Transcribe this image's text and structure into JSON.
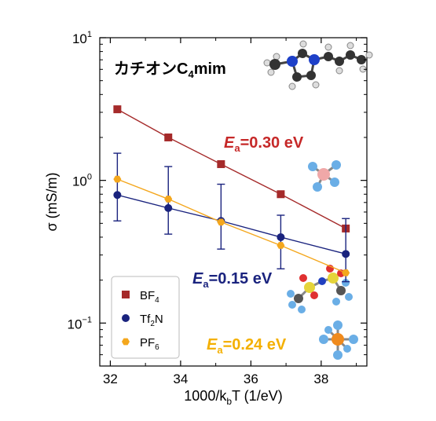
{
  "chart_data": {
    "type": "scatter",
    "title": "カチオンC4mim",
    "title_main": "カチオンC",
    "title_sub": "4",
    "title_tail": "mim",
    "xlabel": "1000/kbT (1/eV)",
    "xlabel_main": "1000/k",
    "xlabel_sub": "b",
    "xlabel_tail": "T (1/eV)",
    "ylabel": "σ (mS/m)",
    "xlim": [
      31.7,
      39.3
    ],
    "ylim": [
      0.05,
      10
    ],
    "yscale": "log",
    "xticks": [
      32,
      34,
      36,
      38
    ],
    "xtick_labels": [
      "32",
      "34",
      "36",
      "38"
    ],
    "yticks": [
      {
        "value": 10,
        "base": "10",
        "exp": "1"
      },
      {
        "value": 1,
        "base": "10",
        "exp": "0"
      },
      {
        "value": 0.1,
        "base": "10",
        "exp": "−1"
      }
    ],
    "grid": false,
    "legend_position": "bottom-left",
    "series": [
      {
        "name": "BF4",
        "name_main": "BF",
        "name_sub": "4",
        "color": "#a52a2a",
        "marker": "square",
        "x": [
          32.2,
          33.65,
          35.15,
          36.85,
          38.7
        ],
        "y": [
          3.15,
          2.0,
          1.3,
          0.8,
          0.46
        ]
      },
      {
        "name": "Tf2N",
        "name_main": "Tf",
        "name_sub": "2",
        "name_tail": "N",
        "color": "#1a237e",
        "marker": "circle",
        "x": [
          32.2,
          33.65,
          35.15,
          36.85,
          38.7
        ],
        "y": [
          0.79,
          0.64,
          0.52,
          0.4,
          0.305
        ],
        "yerr_low": [
          0.52,
          0.42,
          0.33,
          0.24,
          0.195
        ],
        "yerr_high": [
          1.55,
          1.25,
          0.94,
          0.57,
          0.54
        ]
      },
      {
        "name": "PF6",
        "name_main": "PF",
        "name_sub": "6",
        "color": "#f4a71d",
        "marker": "hexagon",
        "x": [
          32.2,
          33.65,
          35.15,
          36.85,
          38.7
        ],
        "y": [
          1.02,
          0.74,
          0.51,
          0.35,
          0.225
        ]
      }
    ],
    "annotations": [
      {
        "series": "BF4",
        "label": "E",
        "label_sub": "a",
        "value": "=0.30 eV",
        "color": "#c62828"
      },
      {
        "series": "Tf2N",
        "label": "E",
        "label_sub": "a",
        "value": "=0.15 eV",
        "color": "#1a237e"
      },
      {
        "series": "PF6",
        "label": "E",
        "label_sub": "a",
        "value": "=0.24 eV",
        "color": "#f4b000"
      }
    ]
  }
}
